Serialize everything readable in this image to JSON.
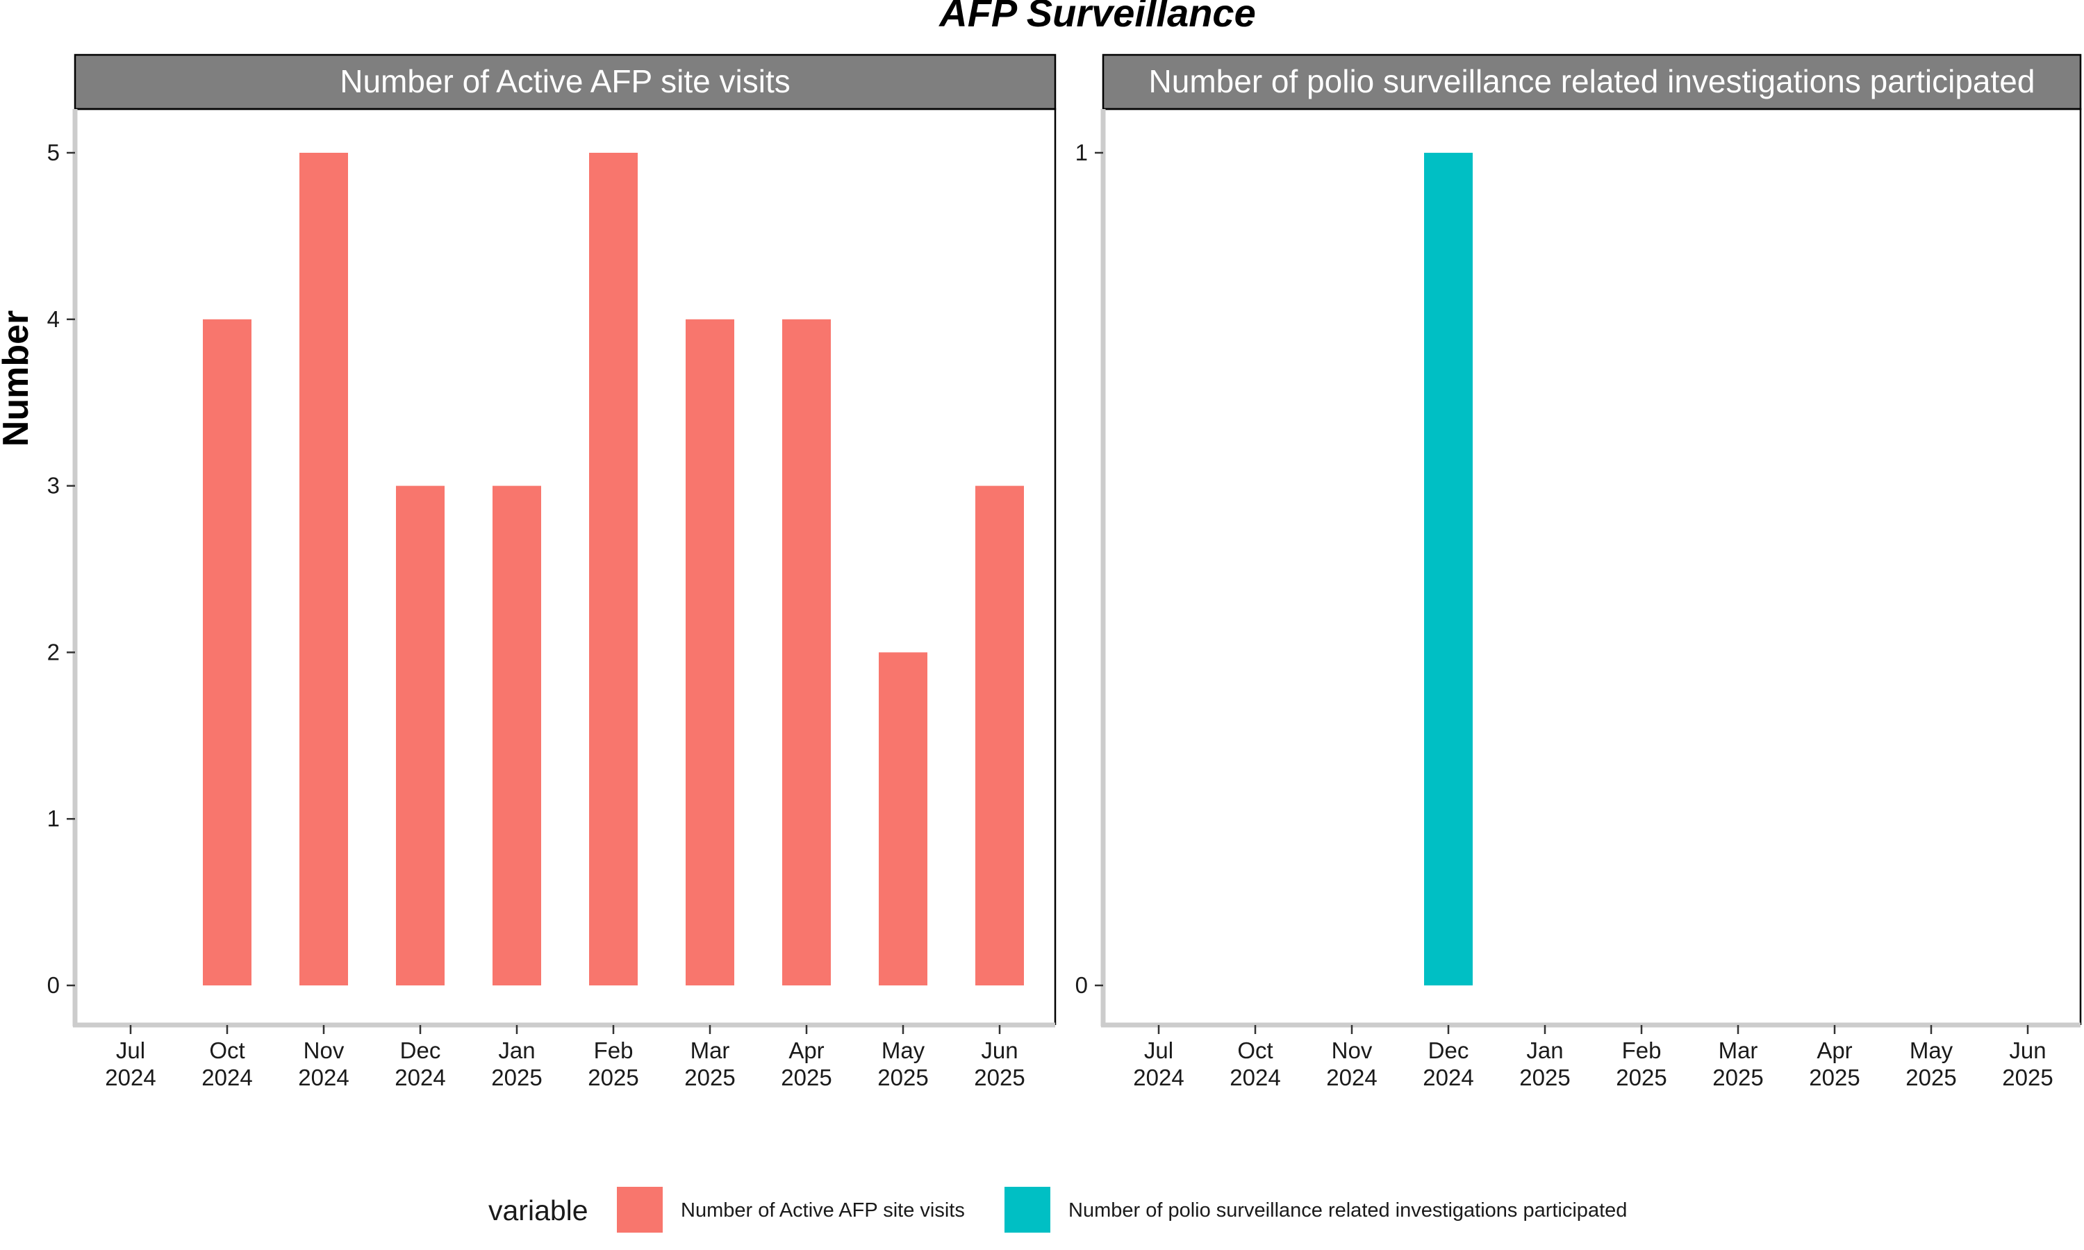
{
  "chart_data": {
    "type": "bar",
    "title": "AFP Surveillance",
    "ylabel": "Number",
    "x_tick_labels": [
      {
        "month": "Jul",
        "year": "2024"
      },
      {
        "month": "Oct",
        "year": "2024"
      },
      {
        "month": "Nov",
        "year": "2024"
      },
      {
        "month": "Dec",
        "year": "2024"
      },
      {
        "month": "Jan",
        "year": "2025"
      },
      {
        "month": "Feb",
        "year": "2025"
      },
      {
        "month": "Mar",
        "year": "2025"
      },
      {
        "month": "Apr",
        "year": "2025"
      },
      {
        "month": "May",
        "year": "2025"
      },
      {
        "month": "Jun",
        "year": "2025"
      }
    ],
    "legend": {
      "title": "variable",
      "position": "bottom",
      "items": [
        {
          "label": "Number of Active AFP site visits",
          "color": "#F8766D"
        },
        {
          "label": "Number of polio surveillance related investigations participated",
          "color": "#00BFC4"
        }
      ]
    },
    "panels": [
      {
        "strip_label": "Number of Active AFP site visits",
        "series_name": "Number of Active AFP site visits",
        "color": "#F8766D",
        "ylim": [
          0,
          5
        ],
        "yticks": [
          0,
          1,
          2,
          3,
          4,
          5
        ],
        "values": [
          0,
          4,
          5,
          3,
          3,
          5,
          4,
          4,
          2,
          3
        ]
      },
      {
        "strip_label": "Number of polio surveillance related investigations participated",
        "series_name": "Number of polio surveillance related investigations participated",
        "color": "#00BFC4",
        "ylim": [
          0,
          1
        ],
        "yticks": [
          0,
          1
        ],
        "values": [
          0,
          0,
          0,
          1,
          0,
          0,
          0,
          0,
          0,
          0
        ]
      }
    ],
    "grid": false
  }
}
